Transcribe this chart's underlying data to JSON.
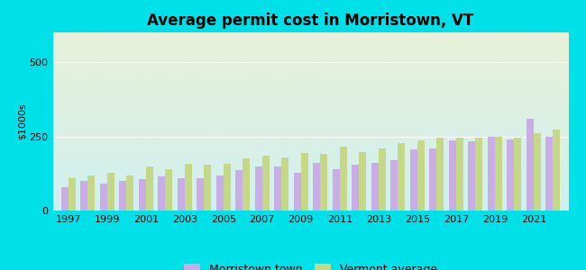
{
  "title": "Average permit cost in Morristown, VT",
  "ylabel": "$1000s",
  "background_outer": "#00e0e8",
  "background_inner_top": "#e8f0d8",
  "background_inner_bottom": "#d0f0f0",
  "years": [
    1997,
    1998,
    1999,
    2000,
    2001,
    2002,
    2003,
    2004,
    2005,
    2006,
    2007,
    2008,
    2009,
    2010,
    2011,
    2012,
    2013,
    2014,
    2015,
    2016,
    2017,
    2018,
    2019,
    2020,
    2021,
    2022
  ],
  "morristown": [
    80,
    100,
    90,
    100,
    105,
    115,
    110,
    108,
    118,
    135,
    148,
    148,
    128,
    160,
    140,
    155,
    160,
    170,
    205,
    210,
    235,
    232,
    248,
    238,
    310,
    248
  ],
  "vermont": [
    110,
    118,
    128,
    118,
    148,
    138,
    158,
    155,
    158,
    175,
    185,
    178,
    195,
    192,
    215,
    198,
    210,
    228,
    235,
    245,
    245,
    245,
    250,
    245,
    260,
    272
  ],
  "morristown_color": "#c9aee5",
  "vermont_color": "#c5d888",
  "ylim": [
    0,
    600
  ],
  "yticks": [
    0,
    250,
    500
  ],
  "bar_width": 0.38,
  "legend_morristown": "Morristown town",
  "legend_vermont": "Vermont average",
  "title_fontsize": 12,
  "axis_fontsize": 8,
  "legend_fontsize": 9
}
